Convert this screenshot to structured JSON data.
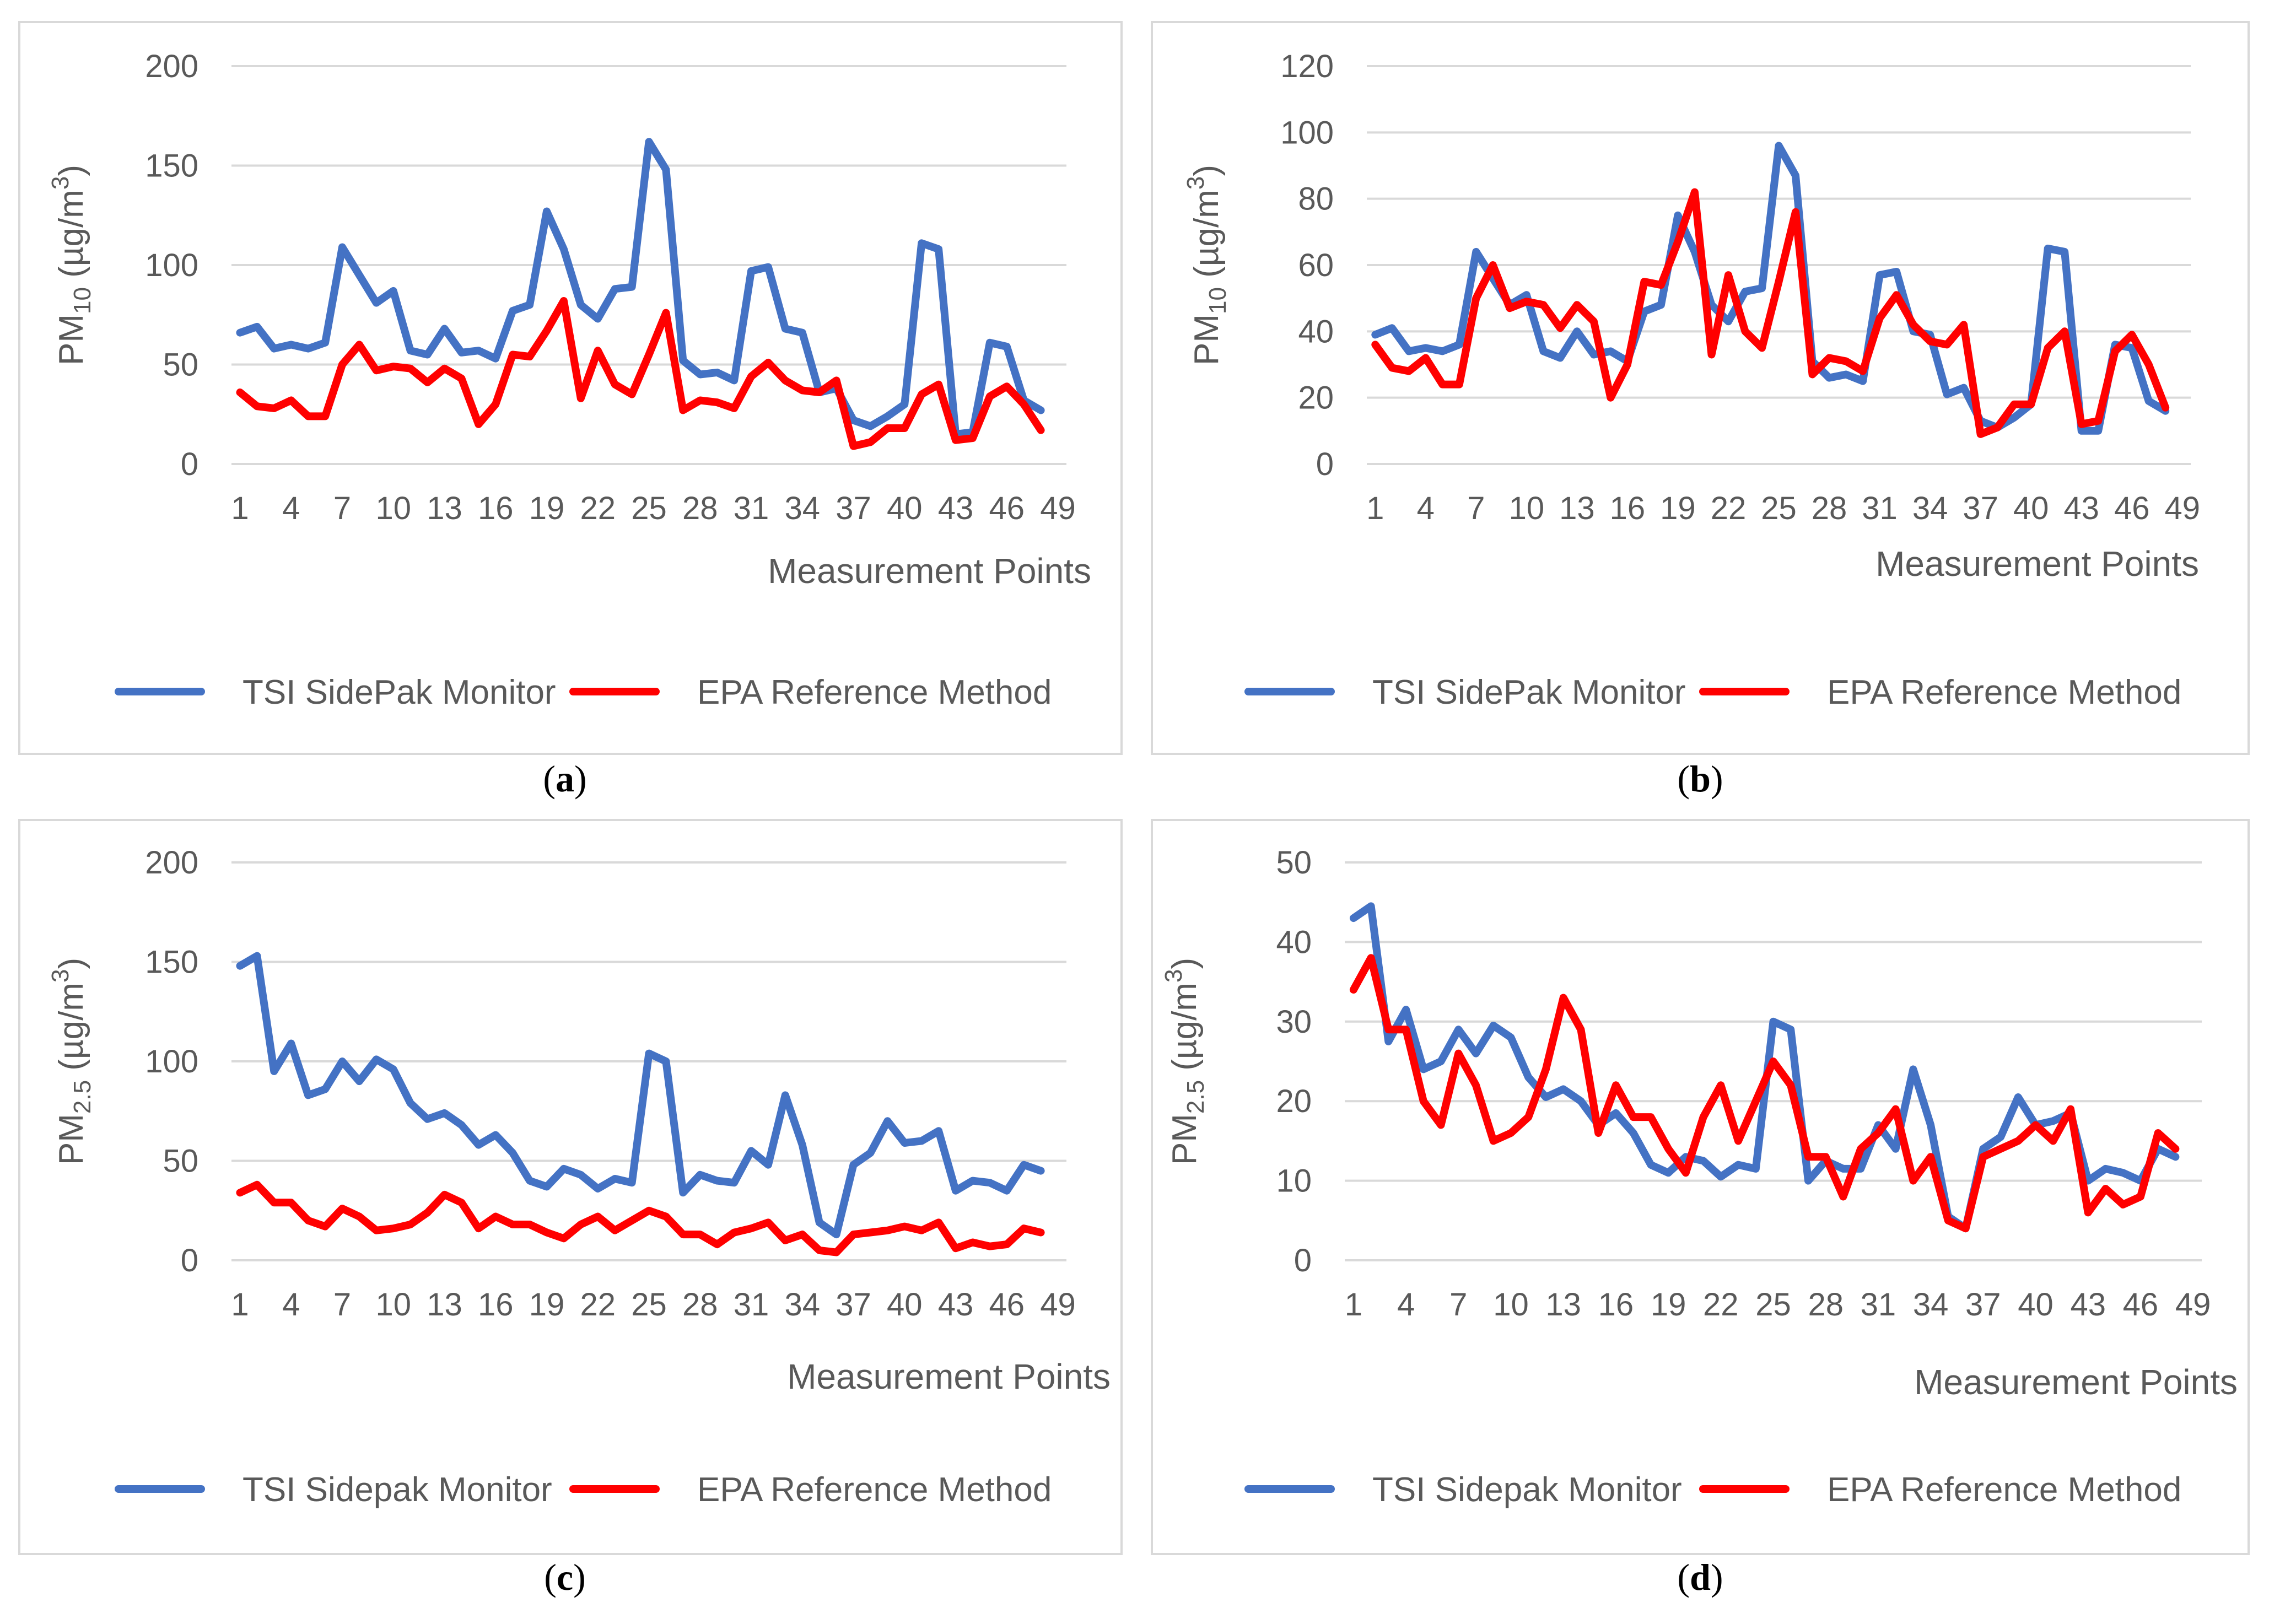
{
  "figure": {
    "panels": [
      {
        "caption_letter": "a",
        "caption_open": "(",
        "caption_close": ")"
      },
      {
        "caption_letter": "b",
        "caption_open": "(",
        "caption_close": ")"
      },
      {
        "caption_letter": "c",
        "caption_open": "(",
        "caption_close": ")"
      },
      {
        "caption_letter": "d",
        "caption_open": "(",
        "caption_close": ")"
      }
    ]
  },
  "colors": {
    "series1": "#4472C4",
    "series2": "#FF0000",
    "grid": "#D9D9D9",
    "text": "#595959",
    "frame": "#D9D9D9"
  },
  "chart_data": [
    {
      "type": "line",
      "panel": "a",
      "ylabel_main": "PM",
      "ylabel_sub": "10",
      "ylabel_unit": " (µg/m",
      "ylabel_sup": "3",
      "ylabel_end": ")",
      "xlabel": "Measurement Points",
      "ylim": [
        0,
        200
      ],
      "yticks": [
        0,
        50,
        100,
        150,
        200
      ],
      "xticks": [
        1,
        4,
        7,
        10,
        13,
        16,
        19,
        22,
        25,
        28,
        31,
        34,
        37,
        40,
        43,
        46,
        49
      ],
      "legend_position": "bottom",
      "series": [
        {
          "name": "TSI SidePak Monitor",
          "values": [
            66,
            69,
            58,
            60,
            58,
            61,
            109,
            95,
            81,
            87,
            57,
            55,
            68,
            56,
            57,
            53,
            77,
            80,
            127,
            108,
            80,
            73,
            88,
            89,
            162,
            148,
            52,
            45,
            46,
            42,
            97,
            99,
            68,
            66,
            36,
            38,
            22,
            19,
            24,
            30,
            111,
            108,
            15,
            16,
            61,
            59,
            32,
            27
          ]
        },
        {
          "name": "EPA Reference Method",
          "values": [
            36,
            29,
            28,
            32,
            24,
            24,
            50,
            60,
            47,
            49,
            48,
            41,
            48,
            43,
            20,
            30,
            55,
            54,
            67,
            82,
            33,
            57,
            40,
            35,
            55,
            76,
            27,
            32,
            31,
            28,
            44,
            51,
            42,
            37,
            36,
            42,
            9,
            11,
            18,
            18,
            35,
            40,
            12,
            13,
            34,
            39,
            30,
            17
          ]
        }
      ]
    },
    {
      "type": "line",
      "panel": "b",
      "ylabel_main": "PM",
      "ylabel_sub": "10",
      "ylabel_unit": " (µg/m",
      "ylabel_sup": "3",
      "ylabel_end": ")",
      "xlabel": "Measurement Points",
      "ylim": [
        0,
        120
      ],
      "yticks": [
        0,
        20,
        40,
        60,
        80,
        100,
        120
      ],
      "xticks": [
        1,
        4,
        7,
        10,
        13,
        16,
        19,
        22,
        25,
        28,
        31,
        34,
        37,
        40,
        43,
        46,
        49
      ],
      "legend_position": "bottom",
      "series": [
        {
          "name": "TSI SidePak Monitor",
          "values": [
            39,
            41,
            34,
            35,
            34,
            36,
            64,
            56,
            48,
            51,
            34,
            32,
            40,
            33,
            34,
            31,
            46,
            48,
            75,
            64,
            48,
            43,
            52,
            53,
            96,
            87,
            31,
            26,
            27,
            25,
            57,
            58,
            40,
            39,
            21,
            23,
            13,
            11,
            14,
            18,
            65,
            64,
            10,
            10,
            36,
            35,
            19,
            16
          ]
        },
        {
          "name": "EPA Reference Method",
          "values": [
            36,
            29,
            28,
            32,
            24,
            24,
            50,
            60,
            47,
            49,
            48,
            41,
            48,
            43,
            20,
            30,
            55,
            54,
            67,
            82,
            33,
            57,
            40,
            35,
            55,
            76,
            27,
            32,
            31,
            28,
            44,
            51,
            42,
            37,
            36,
            42,
            9,
            11,
            18,
            18,
            35,
            40,
            12,
            13,
            34,
            39,
            30,
            17
          ]
        }
      ]
    },
    {
      "type": "line",
      "panel": "c",
      "ylabel_main": "PM",
      "ylabel_sub": "2.5",
      "ylabel_unit": " (µg/m",
      "ylabel_sup": "3",
      "ylabel_end": ")",
      "xlabel": "Measurement Points",
      "ylim": [
        0,
        200
      ],
      "yticks": [
        0,
        50,
        100,
        150,
        200
      ],
      "xticks": [
        1,
        4,
        7,
        10,
        13,
        16,
        19,
        22,
        25,
        28,
        31,
        34,
        37,
        40,
        43,
        46,
        49
      ],
      "legend_position": "bottom",
      "series": [
        {
          "name": "TSI Sidepak Monitor",
          "values": [
            148,
            153,
            95,
            109,
            83,
            86,
            100,
            90,
            101,
            96,
            79,
            71,
            74,
            68,
            58,
            63,
            54,
            40,
            37,
            46,
            43,
            36,
            41,
            39,
            104,
            100,
            34,
            43,
            40,
            39,
            55,
            48,
            83,
            58,
            19,
            13,
            48,
            54,
            70,
            59,
            60,
            65,
            35,
            40,
            39,
            35,
            48,
            45
          ]
        },
        {
          "name": "EPA Reference Method",
          "values": [
            34,
            38,
            29,
            29,
            20,
            17,
            26,
            22,
            15,
            16,
            18,
            24,
            33,
            29,
            16,
            22,
            18,
            18,
            14,
            11,
            18,
            22,
            15,
            20,
            25,
            22,
            13,
            13,
            8,
            14,
            16,
            19,
            10,
            13,
            5,
            4,
            13,
            14,
            15,
            17,
            15,
            19,
            6,
            9,
            7,
            8,
            16,
            14
          ]
        }
      ]
    },
    {
      "type": "line",
      "panel": "d",
      "ylabel_main": "PM",
      "ylabel_sub": "2.5",
      "ylabel_unit": " (µg/m",
      "ylabel_sup": "3",
      "ylabel_end": ")",
      "xlabel": "Measurement Points",
      "ylim": [
        0,
        50
      ],
      "yticks": [
        0,
        10,
        20,
        30,
        40,
        50
      ],
      "xticks": [
        1,
        4,
        7,
        10,
        13,
        16,
        19,
        22,
        25,
        28,
        31,
        34,
        37,
        40,
        43,
        46,
        49
      ],
      "legend_position": "bottom",
      "series": [
        {
          "name": "TSI Sidepak Monitor",
          "values": [
            43,
            44.5,
            27.5,
            31.5,
            24,
            25,
            29,
            26,
            29.5,
            28,
            23,
            20.5,
            21.5,
            20,
            17,
            18.5,
            16,
            12,
            11,
            13,
            12.5,
            10.5,
            12,
            11.5,
            30,
            29,
            10,
            12.5,
            11.5,
            11.5,
            17,
            14,
            24,
            17,
            5.5,
            4,
            14,
            15.5,
            20.5,
            17,
            17.5,
            18.5,
            10,
            11.5,
            11,
            10,
            14,
            13
          ]
        },
        {
          "name": "EPA Reference Method",
          "values": [
            34,
            38,
            29,
            29,
            20,
            17,
            26,
            22,
            15,
            16,
            18,
            24,
            33,
            29,
            16,
            22,
            18,
            18,
            14,
            11,
            18,
            22,
            15,
            20,
            25,
            22,
            13,
            13,
            8,
            14,
            16,
            19,
            10,
            13,
            5,
            4,
            13,
            14,
            15,
            17,
            15,
            19,
            6,
            9,
            7,
            8,
            16,
            14
          ]
        }
      ]
    }
  ]
}
